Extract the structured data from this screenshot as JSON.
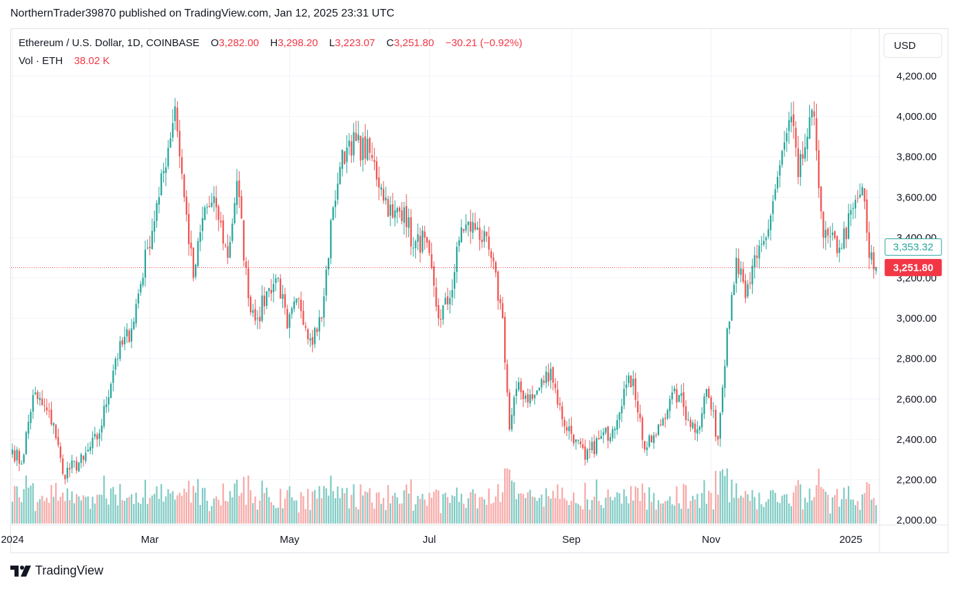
{
  "caption": "NorthernTrader39870 published on TradingView.com, Jan 12, 2025 23:31 UTC",
  "legend": {
    "symbol": "Ethereum / U.S. Dollar, 1D, COINBASE",
    "o_label": "O",
    "o_value": "3,282.00",
    "h_label": "H",
    "h_value": "3,298.20",
    "l_label": "L",
    "l_value": "3,223.07",
    "c_label": "C",
    "c_value": "3,251.80",
    "change": "−30.21 (−0.92%)",
    "vol_label": "Vol · ETH",
    "vol_value": "38.02 K"
  },
  "currency_button": "USD",
  "brand": "TradingView",
  "colors": {
    "up": "#26a69a",
    "down": "#ef5350",
    "up_vol": "#80cbc4",
    "down_vol": "#f7a9a7",
    "grid": "#f0f3fa",
    "text": "#131722",
    "last_price_bg": "#f23645"
  },
  "icons": {
    "logo": "tradingview-logo-icon"
  },
  "chart_data": {
    "type": "candlestick",
    "symbol": "ETHUSD",
    "interval": "1D",
    "y_range": [
      1890,
      4210
    ],
    "y_ticks": [
      "2,000.00",
      "2,200.00",
      "2,400.00",
      "2,600.00",
      "2,800.00",
      "3,000.00",
      "3,200.00",
      "3,400.00",
      "3,600.00",
      "3,800.00",
      "4,000.00",
      "4,200.00"
    ],
    "x_ticks": [
      "2024",
      "Mar",
      "May",
      "Jul",
      "Sep",
      "Nov",
      "2025"
    ],
    "x_tick_dates": [
      "2024-01-01",
      "2024-03-01",
      "2024-05-01",
      "2024-07-01",
      "2024-09-01",
      "2024-11-01",
      "2025-01-01"
    ],
    "x_start_date": "2024-01-01",
    "x_end_date": "2025-01-12",
    "price_labels": [
      {
        "text": "3,353.32",
        "value": 3353.32,
        "style": "outline"
      },
      {
        "text": "3,251.80",
        "value": 3251.8,
        "style": "filled"
      }
    ],
    "current_price": 3251.8,
    "close_anchors": [
      {
        "date": "2024-01-01",
        "close": 2350
      },
      {
        "date": "2024-01-05",
        "close": 2280
      },
      {
        "date": "2024-01-10",
        "close": 2620
      },
      {
        "date": "2024-01-12",
        "close": 2600
      },
      {
        "date": "2024-01-19",
        "close": 2480
      },
      {
        "date": "2024-01-23",
        "close": 2230
      },
      {
        "date": "2024-02-01",
        "close": 2300
      },
      {
        "date": "2024-02-08",
        "close": 2430
      },
      {
        "date": "2024-02-15",
        "close": 2800
      },
      {
        "date": "2024-02-22",
        "close": 2950
      },
      {
        "date": "2024-02-29",
        "close": 3350
      },
      {
        "date": "2024-03-05",
        "close": 3600
      },
      {
        "date": "2024-03-12",
        "close": 4050
      },
      {
        "date": "2024-03-16",
        "close": 3600
      },
      {
        "date": "2024-03-20",
        "close": 3200
      },
      {
        "date": "2024-03-25",
        "close": 3550
      },
      {
        "date": "2024-03-30",
        "close": 3550
      },
      {
        "date": "2024-04-04",
        "close": 3300
      },
      {
        "date": "2024-04-08",
        "close": 3680
      },
      {
        "date": "2024-04-13",
        "close": 3100
      },
      {
        "date": "2024-04-17",
        "close": 3000
      },
      {
        "date": "2024-04-22",
        "close": 3150
      },
      {
        "date": "2024-04-26",
        "close": 3200
      },
      {
        "date": "2024-04-30",
        "close": 2950
      },
      {
        "date": "2024-05-05",
        "close": 3100
      },
      {
        "date": "2024-05-10",
        "close": 2900
      },
      {
        "date": "2024-05-15",
        "close": 3000
      },
      {
        "date": "2024-05-20",
        "close": 3550
      },
      {
        "date": "2024-05-23",
        "close": 3750
      },
      {
        "date": "2024-05-27",
        "close": 3880
      },
      {
        "date": "2024-06-05",
        "close": 3820
      },
      {
        "date": "2024-06-10",
        "close": 3650
      },
      {
        "date": "2024-06-15",
        "close": 3500
      },
      {
        "date": "2024-06-20",
        "close": 3550
      },
      {
        "date": "2024-06-24",
        "close": 3350
      },
      {
        "date": "2024-06-29",
        "close": 3400
      },
      {
        "date": "2024-07-05",
        "close": 3000
      },
      {
        "date": "2024-07-10",
        "close": 3100
      },
      {
        "date": "2024-07-15",
        "close": 3450
      },
      {
        "date": "2024-07-22",
        "close": 3450
      },
      {
        "date": "2024-07-28",
        "close": 3300
      },
      {
        "date": "2024-08-02",
        "close": 3000
      },
      {
        "date": "2024-08-05",
        "close": 2450
      },
      {
        "date": "2024-08-08",
        "close": 2650
      },
      {
        "date": "2024-08-15",
        "close": 2600
      },
      {
        "date": "2024-08-23",
        "close": 2750
      },
      {
        "date": "2024-08-28",
        "close": 2500
      },
      {
        "date": "2024-09-03",
        "close": 2400
      },
      {
        "date": "2024-09-07",
        "close": 2300
      },
      {
        "date": "2024-09-13",
        "close": 2400
      },
      {
        "date": "2024-09-19",
        "close": 2450
      },
      {
        "date": "2024-09-24",
        "close": 2650
      },
      {
        "date": "2024-09-28",
        "close": 2700
      },
      {
        "date": "2024-10-03",
        "close": 2350
      },
      {
        "date": "2024-10-08",
        "close": 2420
      },
      {
        "date": "2024-10-14",
        "close": 2600
      },
      {
        "date": "2024-10-18",
        "close": 2620
      },
      {
        "date": "2024-10-22",
        "close": 2500
      },
      {
        "date": "2024-10-26",
        "close": 2450
      },
      {
        "date": "2024-10-30",
        "close": 2650
      },
      {
        "date": "2024-11-04",
        "close": 2400
      },
      {
        "date": "2024-11-08",
        "close": 2950
      },
      {
        "date": "2024-11-12",
        "close": 3300
      },
      {
        "date": "2024-11-16",
        "close": 3100
      },
      {
        "date": "2024-11-21",
        "close": 3300
      },
      {
        "date": "2024-11-25",
        "close": 3400
      },
      {
        "date": "2024-11-30",
        "close": 3700
      },
      {
        "date": "2024-12-06",
        "close": 4000
      },
      {
        "date": "2024-12-09",
        "close": 3700
      },
      {
        "date": "2024-12-13",
        "close": 3900
      },
      {
        "date": "2024-12-16",
        "close": 4000
      },
      {
        "date": "2024-12-20",
        "close": 3400
      },
      {
        "date": "2024-12-27",
        "close": 3350
      },
      {
        "date": "2025-01-06",
        "close": 3650
      },
      {
        "date": "2025-01-09",
        "close": 3300
      },
      {
        "date": "2025-01-12",
        "close": 3252
      }
    ]
  }
}
